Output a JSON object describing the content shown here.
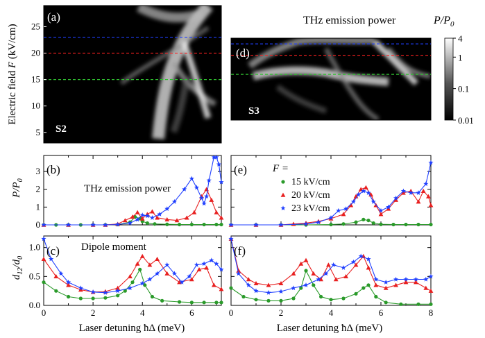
{
  "chart_data": [
    {
      "panel": "(a)",
      "sample": "S2",
      "type": "heatmap",
      "xlim": [
        0,
        7.2
      ],
      "ylim": [
        3,
        29
      ],
      "ylabel": "Electric field F (kV/cm)",
      "yticks": [
        5,
        10,
        15,
        20,
        25
      ],
      "reference_lines": [
        {
          "y": 23,
          "color": "#1f3fff"
        },
        {
          "y": 20,
          "color": "#ff2020"
        },
        {
          "y": 15,
          "color": "#30c030"
        }
      ]
    },
    {
      "panel": "(d)",
      "sample": "S3",
      "type": "heatmap",
      "title": "THz emission power",
      "xlim": [
        0,
        8
      ],
      "ylim": [
        3,
        29
      ],
      "colorbar": {
        "label": "P/P0",
        "scale": "log",
        "ticks": [
          "4",
          "1",
          "0.1",
          "0.01"
        ]
      },
      "reference_lines": [
        {
          "y": 23,
          "color": "#1f3fff"
        },
        {
          "y": 20,
          "color": "#ff2020"
        },
        {
          "y": 15,
          "color": "#30c030"
        }
      ]
    },
    {
      "panel": "(b)",
      "type": "line",
      "annotation": "THz emission power",
      "ylabel": "P/P0",
      "xlim": [
        0,
        7.2
      ],
      "ylim": [
        0,
        3.9
      ],
      "yticks": [
        0,
        1,
        2,
        3
      ],
      "series": [
        {
          "name": "15 kV/cm",
          "color": "#2a9a2a",
          "marker": "circle",
          "x": [
            0,
            0.5,
            1,
            1.5,
            2,
            2.5,
            3,
            3.5,
            3.7,
            3.9,
            4,
            4.2,
            4.5,
            5,
            5.5,
            6,
            6.5,
            7,
            7.2
          ],
          "y": [
            0,
            0,
            0,
            0,
            0,
            0,
            0.02,
            0.15,
            0.45,
            0.35,
            0.2,
            0.1,
            0.05,
            0.03,
            0.02,
            0.02,
            0.02,
            0.02,
            0.02
          ]
        },
        {
          "name": "20 kV/cm",
          "color": "#e82020",
          "marker": "triangle",
          "x": [
            0,
            1,
            2,
            2.5,
            3,
            3.3,
            3.6,
            3.8,
            4,
            4.2,
            4.4,
            4.6,
            5,
            5.4,
            5.8,
            6.1,
            6.4,
            6.6,
            6.8,
            7,
            7.2
          ],
          "y": [
            0,
            0,
            0,
            0,
            0.05,
            0.25,
            0.45,
            0.7,
            0.35,
            0.6,
            0.75,
            0.4,
            0.3,
            0.25,
            0.4,
            0.7,
            1.6,
            2.0,
            1.4,
            0.7,
            0.4
          ]
        },
        {
          "name": "23 kV/cm",
          "color": "#1f3fff",
          "marker": "star",
          "x": [
            0,
            1,
            2,
            2.5,
            3,
            3.5,
            3.8,
            4,
            4.2,
            4.4,
            4.7,
            5,
            5.3,
            5.7,
            6,
            6.2,
            6.4,
            6.5,
            6.6,
            6.7,
            6.9,
            7,
            7.1,
            7.2
          ],
          "y": [
            0,
            0,
            0,
            0,
            0.02,
            0.1,
            0.3,
            0.55,
            0.5,
            0.4,
            0.6,
            0.9,
            1.3,
            2.0,
            2.6,
            2.1,
            1.5,
            1.2,
            1.6,
            2.5,
            3.8,
            3.8,
            3.4,
            2.4
          ]
        }
      ]
    },
    {
      "panel": "(e)",
      "type": "line",
      "xlim": [
        0,
        8
      ],
      "ylim": [
        0,
        3.9
      ],
      "legend_title": "F =",
      "series": [
        {
          "name": "15 kV/cm",
          "color": "#2a9a2a",
          "marker": "circle",
          "x": [
            0,
            1,
            2,
            3,
            4,
            4.5,
            5,
            5.3,
            5.5,
            5.7,
            6,
            6.5,
            7,
            7.5,
            8
          ],
          "y": [
            0,
            0,
            0,
            0,
            0.02,
            0.05,
            0.15,
            0.3,
            0.25,
            0.1,
            0.03,
            0.02,
            0.02,
            0.02,
            0.02
          ]
        },
        {
          "name": "20 kV/cm",
          "color": "#e82020",
          "marker": "triangle",
          "x": [
            0,
            1,
            2,
            2.5,
            3,
            3.5,
            4,
            4.5,
            4.8,
            5,
            5.2,
            5.4,
            5.6,
            5.8,
            6,
            6.3,
            6.6,
            6.9,
            7.2,
            7.5,
            7.7,
            7.9,
            8
          ],
          "y": [
            0,
            0,
            0,
            0.05,
            0.1,
            0.2,
            0.35,
            0.6,
            1.1,
            1.6,
            2.0,
            2.1,
            1.7,
            1.1,
            0.6,
            0.9,
            1.4,
            1.8,
            1.9,
            1.3,
            1.9,
            1.6,
            1.1
          ]
        },
        {
          "name": "23 kV/cm",
          "color": "#1f3fff",
          "marker": "star",
          "x": [
            0,
            1,
            2,
            3,
            3.5,
            4,
            4.3,
            4.6,
            4.9,
            5.1,
            5.3,
            5.5,
            5.7,
            6,
            6.3,
            6.6,
            6.9,
            7.2,
            7.5,
            7.8,
            8
          ],
          "y": [
            0,
            0,
            0,
            0.05,
            0.15,
            0.4,
            0.8,
            0.9,
            1.3,
            1.7,
            1.9,
            1.8,
            1.3,
            0.8,
            1.0,
            1.5,
            1.9,
            1.8,
            1.8,
            2.3,
            3.5
          ]
        }
      ]
    },
    {
      "panel": "(c)",
      "type": "line",
      "annotation": "Dipole moment",
      "ylabel": "d12/d0",
      "xlabel": "Laser detuning ħΔ (meV)",
      "xlim": [
        0,
        7.2
      ],
      "ylim": [
        0,
        1.2
      ],
      "xticks": [
        0,
        2,
        4,
        6
      ],
      "yticks": [
        0.0,
        0.5,
        1.0
      ],
      "series": [
        {
          "name": "15 kV/cm",
          "color": "#2a9a2a",
          "marker": "circle",
          "x": [
            0,
            0.5,
            1,
            1.5,
            2,
            2.5,
            3,
            3.3,
            3.6,
            3.9,
            4.1,
            4.4,
            4.8,
            5.5,
            6,
            6.5,
            7,
            7.2
          ],
          "y": [
            0.4,
            0.25,
            0.15,
            0.12,
            0.12,
            0.13,
            0.17,
            0.25,
            0.4,
            0.62,
            0.35,
            0.15,
            0.08,
            0.06,
            0.05,
            0.05,
            0.05,
            0.05
          ]
        },
        {
          "name": "20 kV/cm",
          "color": "#e82020",
          "marker": "triangle",
          "x": [
            0,
            0.5,
            1,
            1.5,
            2,
            2.5,
            3,
            3.5,
            3.8,
            4,
            4.3,
            4.6,
            5,
            5.5,
            6,
            6.3,
            6.6,
            6.9,
            7.2
          ],
          "y": [
            0.8,
            0.5,
            0.35,
            0.27,
            0.23,
            0.24,
            0.3,
            0.5,
            0.72,
            0.85,
            0.7,
            0.8,
            0.55,
            0.4,
            0.45,
            0.62,
            0.65,
            0.35,
            0.28
          ]
        },
        {
          "name": "23 kV/cm",
          "color": "#1f3fff",
          "marker": "star",
          "x": [
            0,
            0.3,
            0.7,
            1,
            1.5,
            2,
            2.5,
            3,
            3.5,
            4,
            4.3,
            4.6,
            5,
            5.3,
            5.6,
            5.9,
            6.2,
            6.5,
            6.8,
            7,
            7.2
          ],
          "y": [
            1.15,
            0.8,
            0.55,
            0.4,
            0.3,
            0.23,
            0.22,
            0.25,
            0.3,
            0.38,
            0.45,
            0.55,
            0.7,
            0.55,
            0.4,
            0.5,
            0.7,
            0.72,
            0.78,
            0.72,
            0.62
          ]
        }
      ]
    },
    {
      "panel": "(f)",
      "type": "line",
      "xlabel": "Laser detuning ħΔ (meV)",
      "xlim": [
        0,
        8
      ],
      "ylim": [
        0,
        1.2
      ],
      "xticks": [
        0,
        2,
        4,
        6,
        8
      ],
      "series": [
        {
          "name": "15 kV/cm",
          "color": "#2a9a2a",
          "marker": "circle",
          "x": [
            0,
            0.5,
            1,
            1.5,
            2,
            2.5,
            2.8,
            3,
            3.3,
            3.6,
            4,
            4.5,
            5,
            5.3,
            5.5,
            5.8,
            6.2,
            6.8,
            7.5,
            8
          ],
          "y": [
            0.3,
            0.15,
            0.1,
            0.08,
            0.08,
            0.12,
            0.3,
            0.6,
            0.35,
            0.15,
            0.1,
            0.12,
            0.2,
            0.3,
            0.35,
            0.15,
            0.05,
            0.02,
            0.02,
            0.02
          ]
        },
        {
          "name": "20 kV/cm",
          "color": "#e82020",
          "marker": "triangle",
          "x": [
            0,
            0.3,
            0.7,
            1,
            1.5,
            2,
            2.5,
            2.8,
            3,
            3.3,
            3.6,
            3.9,
            4.2,
            4.6,
            5,
            5.3,
            5.5,
            5.8,
            6.2,
            6.6,
            7,
            7.4,
            7.8,
            8
          ],
          "y": [
            1.15,
            0.6,
            0.45,
            0.38,
            0.35,
            0.38,
            0.55,
            0.72,
            0.78,
            0.55,
            0.45,
            0.7,
            0.45,
            0.5,
            0.7,
            0.85,
            0.65,
            0.35,
            0.3,
            0.35,
            0.4,
            0.4,
            0.3,
            0.25
          ]
        },
        {
          "name": "23 kV/cm",
          "color": "#1f3fff",
          "marker": "star",
          "x": [
            0,
            0.3,
            0.7,
            1,
            1.5,
            2,
            2.5,
            3,
            3.5,
            3.8,
            4.1,
            4.5,
            4.9,
            5.2,
            5.5,
            5.8,
            6.2,
            6.6,
            7,
            7.4,
            7.8,
            8
          ],
          "y": [
            1.15,
            0.55,
            0.35,
            0.25,
            0.22,
            0.24,
            0.3,
            0.35,
            0.45,
            0.55,
            0.7,
            0.65,
            0.75,
            0.85,
            0.8,
            0.45,
            0.4,
            0.45,
            0.45,
            0.45,
            0.45,
            0.5
          ]
        }
      ]
    }
  ],
  "panel_labels": {
    "a": "(a)",
    "b": "(b)",
    "c": "(c)",
    "d": "(d)",
    "e": "(e)",
    "f": "(f)"
  },
  "sample_labels": {
    "s2": "S2",
    "s3": "S3"
  },
  "axis_text": {
    "ylabel_a": "Electric field ",
    "ylabel_a_italic": "F",
    "ylabel_a_unit": " (kV/cm)",
    "ylabel_b_main": "P",
    "ylabel_b_den": "/P",
    "ylabel_b_sub": "0",
    "ylabel_c_main": "d",
    "ylabel_c_sub": "12",
    "ylabel_c_den": "/d",
    "ylabel_c_sub2": "0",
    "xlabel_left": "Laser detuning ħΔ (meV)",
    "xlabel_right": "Laser detuning ħΔ (meV)",
    "thz_title": "THz emission power",
    "cbar_label_p": "P",
    "cbar_label_den": "/P",
    "cbar_label_sub": "0",
    "legend_f": "F =",
    "thz_annotation": "THz emission power",
    "dipole_annotation": "Dipole moment"
  },
  "legend": [
    {
      "label": "15 kV/cm",
      "color": "#2a9a2a",
      "marker": "circle"
    },
    {
      "label": "20 kV/cm",
      "color": "#e82020",
      "marker": "triangle"
    },
    {
      "label": "23 kV/cm",
      "color": "#1f3fff",
      "marker": "star"
    }
  ]
}
